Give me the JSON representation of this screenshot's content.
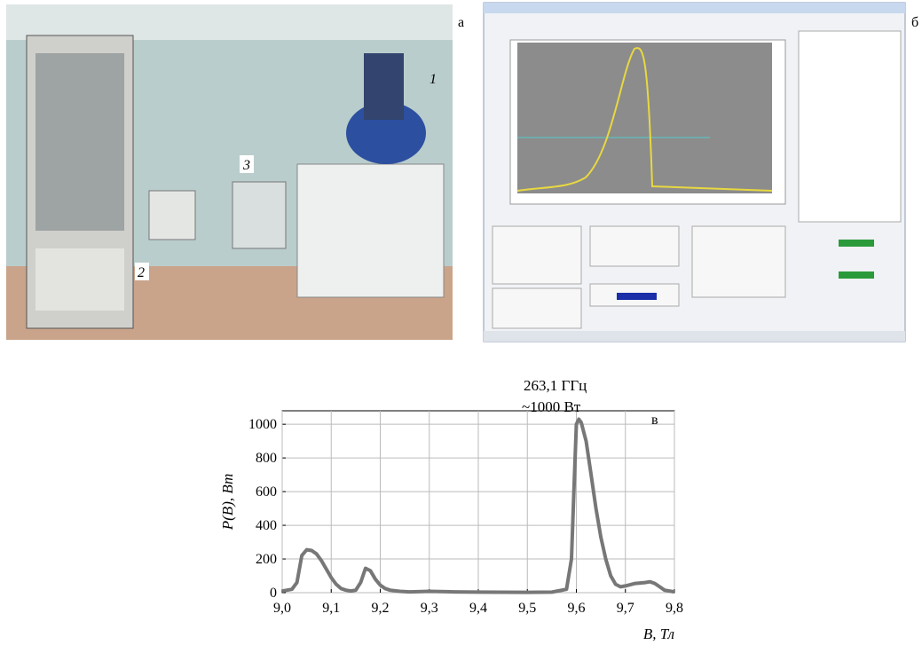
{
  "panels": {
    "photo": {
      "letter": "а",
      "labels": [
        "1",
        "2",
        "3"
      ]
    },
    "screenshot": {
      "letter": "б"
    }
  },
  "chart_data": {
    "type": "line",
    "panel_letter": "в",
    "annotations": [
      "263,1  ГГц",
      "~1000 Вт"
    ],
    "xlabel": "B, Тл",
    "ylabel": "P(B), Вт",
    "color": "#777777",
    "grid": true,
    "xlim": [
      9.0,
      9.8
    ],
    "ylim": [
      0,
      1080
    ],
    "xticks": [
      {
        "value": 9.0,
        "label": "9,0"
      },
      {
        "value": 9.1,
        "label": "9,1"
      },
      {
        "value": 9.2,
        "label": "9,2"
      },
      {
        "value": 9.3,
        "label": "9,3"
      },
      {
        "value": 9.4,
        "label": "9,4"
      },
      {
        "value": 9.5,
        "label": "9,5"
      },
      {
        "value": 9.6,
        "label": "9,6"
      },
      {
        "value": 9.7,
        "label": "9,7"
      },
      {
        "value": 9.8,
        "label": "9,8"
      }
    ],
    "yticks": [
      0,
      200,
      400,
      600,
      800,
      1000
    ],
    "x": [
      9.0,
      9.01,
      9.02,
      9.03,
      9.04,
      9.05,
      9.06,
      9.07,
      9.08,
      9.09,
      9.1,
      9.11,
      9.12,
      9.13,
      9.14,
      9.15,
      9.16,
      9.17,
      9.18,
      9.19,
      9.2,
      9.21,
      9.22,
      9.24,
      9.26,
      9.3,
      9.35,
      9.4,
      9.5,
      9.55,
      9.58,
      9.59,
      9.595,
      9.6,
      9.605,
      9.61,
      9.62,
      9.63,
      9.64,
      9.65,
      9.66,
      9.67,
      9.68,
      9.69,
      9.7,
      9.72,
      9.74,
      9.75,
      9.76,
      9.77,
      9.78,
      9.8
    ],
    "values": [
      10,
      15,
      20,
      60,
      220,
      255,
      250,
      230,
      190,
      140,
      90,
      50,
      25,
      15,
      10,
      15,
      60,
      145,
      130,
      80,
      45,
      25,
      15,
      8,
      5,
      8,
      5,
      3,
      2,
      3,
      20,
      200,
      600,
      1000,
      1030,
      1010,
      900,
      700,
      500,
      330,
      200,
      100,
      50,
      35,
      40,
      55,
      60,
      65,
      55,
      35,
      15,
      5
    ]
  }
}
